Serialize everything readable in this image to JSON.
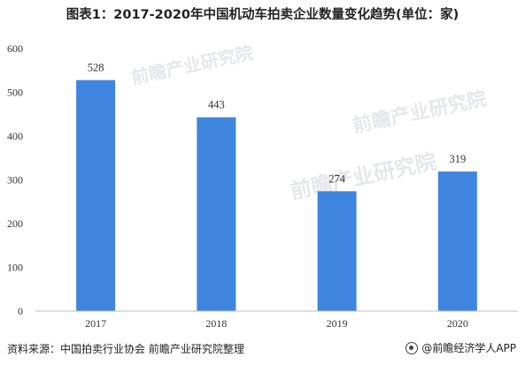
{
  "title": "图表1：2017-2020年中国机动车拍卖企业数量变化趋势(单位：家)",
  "chart_data": {
    "type": "bar",
    "title": "图表1：2017-2020年中国机动车拍卖企业数量变化趋势(单位：家)",
    "categories": [
      "2017",
      "2018",
      "2019",
      "2020"
    ],
    "values": [
      528,
      443,
      274,
      319
    ],
    "ylim": [
      0,
      600
    ],
    "yticks": [
      0,
      100,
      200,
      300,
      400,
      500,
      600
    ],
    "bar_color": "#3f85e0",
    "grid": false,
    "legend": "none"
  },
  "watermark": "前瞻产业研究院",
  "source": "资料来源：中国拍卖行业协会 前瞻产业研究院整理",
  "brand": "@前瞻经济学人APP"
}
